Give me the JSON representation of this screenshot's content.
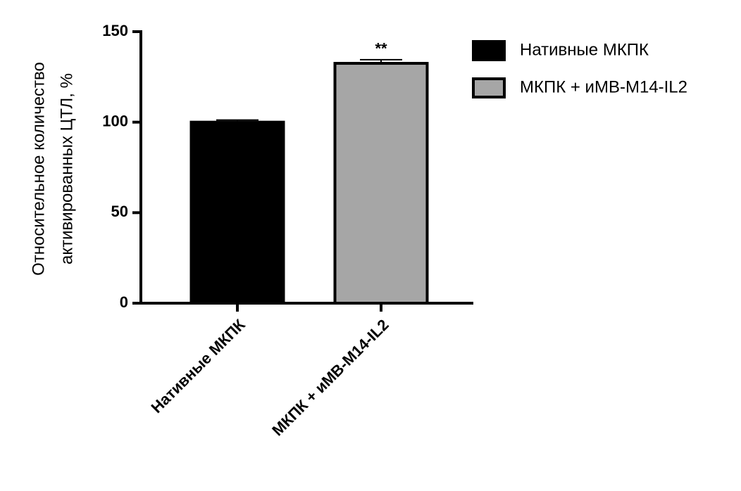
{
  "chart_data": {
    "type": "bar",
    "y_label": [
      "Относительное количество",
      "активированных ЦТЛ, %"
    ],
    "categories": [
      "Нативные МКПК",
      "МКПК + иМВ-М14-IL2"
    ],
    "values": [
      100,
      132.5
    ],
    "errors": [
      1.2,
      2
    ],
    "colors": [
      "#000000",
      "#a6a6a6"
    ],
    "annotations": [
      {
        "text": "**",
        "category": "МКПК + иМВ-М14-IL2"
      }
    ],
    "ylim": [
      0,
      150
    ],
    "yticks": [
      0,
      50,
      100,
      150
    ],
    "legend": "top-right"
  }
}
